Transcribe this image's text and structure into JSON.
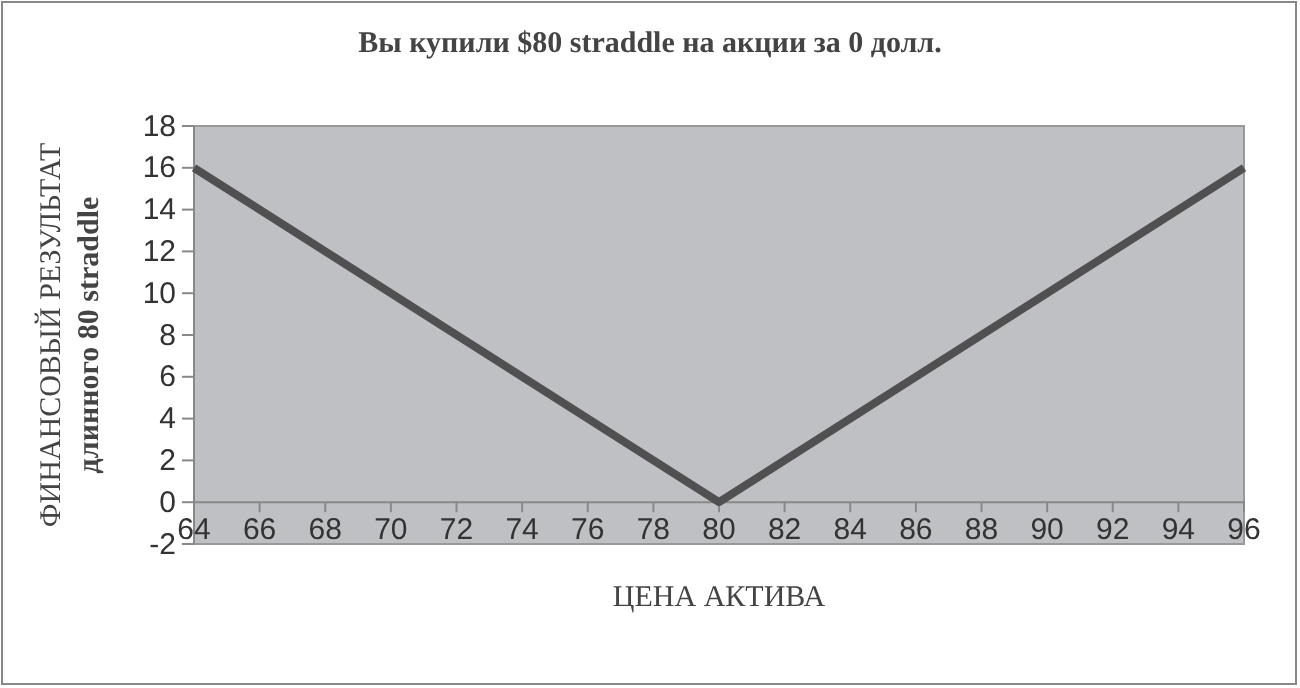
{
  "chart_data": {
    "type": "line",
    "title": "Вы купили $80 straddle на акции за 0 долл.",
    "xlabel": "ЦЕНА АКТИВА",
    "ylabel": "ФИНАНСОВЫЙ РЕЗУЛЬТАТ\nдлинного 80 straddle",
    "x": [
      64,
      80,
      96
    ],
    "series": [
      {
        "color": "#505050",
        "values": [
          16,
          0,
          16
        ]
      }
    ],
    "xlim": [
      64,
      96
    ],
    "xticks": [
      64,
      66,
      68,
      70,
      72,
      74,
      76,
      78,
      80,
      82,
      84,
      86,
      88,
      90,
      92,
      94,
      96
    ],
    "ylim": [
      -2,
      18
    ],
    "yticks": [
      -2,
      0,
      2,
      4,
      6,
      8,
      10,
      12,
      14,
      16,
      18
    ],
    "grid": false,
    "marker": "none",
    "line_style": "solid"
  }
}
